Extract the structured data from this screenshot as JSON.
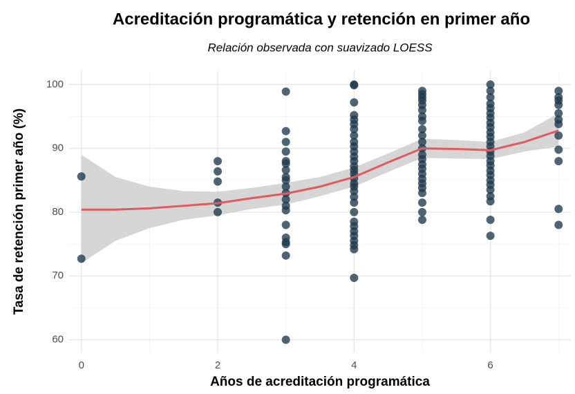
{
  "chart_data": {
    "type": "scatter",
    "title": "Acreditación programática y retención en primer año",
    "subtitle": "Relación observada con suavizado LOESS",
    "xlabel": "Años de acreditación programática",
    "ylabel": "Tasa de retención primer año (%)",
    "xlim": [
      -0.18,
      7.18
    ],
    "ylim": [
      58,
      102.2
    ],
    "xticks": [
      0,
      2,
      4,
      6
    ],
    "yticks": [
      60,
      70,
      80,
      90,
      100
    ],
    "grid": true,
    "minor_grid": true,
    "points": {
      "color": "#1f3a4d",
      "x": [
        0,
        0,
        2,
        2,
        2,
        2,
        2,
        3,
        3,
        3,
        3,
        3,
        3,
        3,
        3,
        3,
        3,
        3,
        3,
        3,
        3,
        3,
        3,
        3,
        3,
        3,
        3,
        4,
        4,
        4,
        4,
        4,
        4,
        4,
        4,
        4,
        4,
        4,
        4,
        4,
        4,
        4,
        4,
        4,
        4,
        4,
        4,
        4,
        4,
        4,
        4,
        4,
        4,
        4,
        4,
        4,
        4,
        4,
        5,
        5,
        5,
        5,
        5,
        5,
        5,
        5,
        5,
        5,
        5,
        5,
        5,
        5,
        5,
        5,
        5,
        5,
        5,
        5,
        5,
        5,
        5,
        5,
        6,
        6,
        6,
        6,
        6,
        6,
        6,
        6,
        6,
        6,
        6,
        6,
        6,
        6,
        6,
        6,
        6,
        6,
        6,
        6,
        6,
        6,
        6,
        6,
        6,
        6,
        7,
        7,
        7,
        7,
        7,
        7,
        7,
        7,
        7,
        7,
        7,
        7
      ],
      "y": [
        85.6,
        72.7,
        88.0,
        86.4,
        84.8,
        81.5,
        80.0,
        98.9,
        92.7,
        91.0,
        89.5,
        88.0,
        87.6,
        86.6,
        85.5,
        85.0,
        84.0,
        83.0,
        82.0,
        81.0,
        80.3,
        78.0,
        76.0,
        75.3,
        75.0,
        73.2,
        60.0,
        100,
        99.9,
        97.2,
        95.2,
        94.5,
        93.8,
        93.0,
        92.0,
        91.0,
        90.3,
        89.5,
        88.7,
        88.0,
        87.2,
        86.6,
        86.0,
        85.3,
        84.5,
        84.0,
        83.3,
        82.4,
        81.5,
        80.0,
        78.5,
        77.8,
        77.0,
        76.3,
        75.5,
        74.8,
        74.2,
        69.7,
        99.0,
        98.5,
        98.0,
        97.5,
        96.8,
        96.0,
        95.0,
        94.3,
        93.0,
        92.0,
        91.0,
        90.0,
        89.0,
        88.3,
        87.5,
        86.8,
        86.0,
        85.2,
        84.5,
        83.8,
        83.0,
        81.5,
        80.0,
        78.8,
        100,
        99.0,
        98.0,
        97.0,
        96.3,
        95.5,
        94.8,
        94.0,
        93.3,
        92.5,
        91.8,
        91.0,
        90.3,
        89.5,
        88.8,
        88.0,
        87.3,
        86.5,
        85.8,
        85.0,
        84.3,
        83.5,
        82.5,
        81.7,
        78.8,
        76.3,
        99.0,
        98.0,
        97.5,
        96.8,
        95.5,
        94.5,
        93.8,
        92.0,
        89.8,
        88.0,
        80.5,
        78.0
      ]
    },
    "smooth": {
      "color": "#e05a5f",
      "band_color": "#c8c8c8",
      "x": [
        0,
        0.5,
        1,
        1.5,
        2,
        2.5,
        3,
        3.5,
        4,
        4.5,
        5,
        5.5,
        6,
        6.5,
        7
      ],
      "y": [
        80.4,
        80.4,
        80.6,
        81.0,
        81.4,
        82.2,
        82.9,
        84.0,
        85.5,
        87.8,
        90.0,
        89.9,
        89.7,
        91.0,
        92.8
      ],
      "lower": [
        72.0,
        75.5,
        77.5,
        78.8,
        79.5,
        80.5,
        81.2,
        82.5,
        84.0,
        86.3,
        88.5,
        88.4,
        88.3,
        89.5,
        90.3
      ],
      "upper": [
        89.0,
        85.5,
        84.0,
        83.3,
        83.2,
        83.8,
        84.6,
        85.5,
        87.0,
        89.2,
        91.5,
        91.3,
        91.0,
        92.5,
        95.5
      ]
    }
  }
}
